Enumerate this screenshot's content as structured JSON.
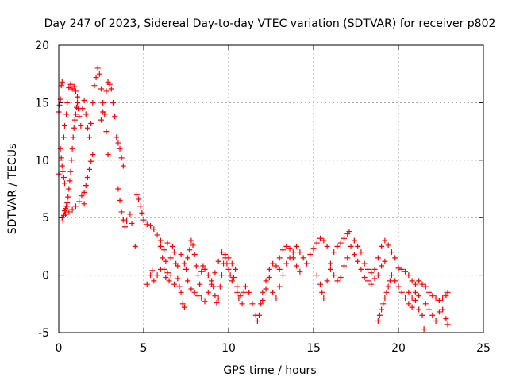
{
  "chart_data": {
    "type": "scatter",
    "title": "Day 247 of 2023, Sidereal Day-to-day VTEC variation (SDTVAR) for receiver p802",
    "xlabel": "GPS time / hours",
    "ylabel": "SDTVAR / TECUs",
    "xlim": [
      0,
      25
    ],
    "ylim": [
      -5,
      20
    ],
    "xticks": [
      0,
      5,
      10,
      15,
      20,
      25
    ],
    "yticks": [
      -5,
      0,
      5,
      10,
      15,
      20
    ],
    "xtick_labels": [
      "0",
      "5",
      "10",
      "15",
      "20",
      "25"
    ],
    "ytick_labels": [
      "-5",
      "0",
      "5",
      "10",
      "15",
      "20"
    ],
    "grid": true,
    "marker": "+",
    "marker_color": "#ff0000",
    "series": [
      {
        "name": "SDTVAR",
        "points": [
          [
            0.0,
            8.8
          ],
          [
            0.0,
            14.2
          ],
          [
            0.05,
            14.8
          ],
          [
            0.1,
            15.3
          ],
          [
            0.15,
            16.5
          ],
          [
            0.2,
            16.8
          ],
          [
            0.2,
            5.0
          ],
          [
            0.25,
            4.7
          ],
          [
            0.3,
            5.2
          ],
          [
            0.35,
            5.6
          ],
          [
            0.4,
            5.8
          ],
          [
            0.45,
            6.0
          ],
          [
            0.5,
            6.3
          ],
          [
            0.55,
            6.8
          ],
          [
            0.6,
            7.5
          ],
          [
            0.65,
            8.2
          ],
          [
            0.7,
            9.0
          ],
          [
            0.75,
            10.0
          ],
          [
            0.8,
            11.0
          ],
          [
            0.85,
            12.0
          ],
          [
            0.9,
            12.8
          ],
          [
            0.95,
            13.5
          ],
          [
            1.0,
            14.0
          ],
          [
            1.05,
            14.6
          ],
          [
            1.1,
            15.0
          ],
          [
            1.15,
            14.5
          ],
          [
            1.2,
            13.8
          ],
          [
            1.3,
            13.0
          ],
          [
            1.4,
            14.5
          ],
          [
            1.5,
            15.2
          ],
          [
            1.6,
            14.0
          ],
          [
            1.7,
            12.8
          ],
          [
            1.8,
            12.0
          ],
          [
            1.9,
            13.2
          ],
          [
            2.0,
            15.0
          ],
          [
            2.1,
            16.5
          ],
          [
            2.2,
            17.2
          ],
          [
            2.3,
            18.0
          ],
          [
            2.4,
            17.5
          ],
          [
            2.5,
            16.2
          ],
          [
            2.6,
            15.0
          ],
          [
            2.7,
            14.0
          ],
          [
            2.8,
            12.5
          ],
          [
            2.9,
            10.5
          ],
          [
            2.5,
            13.5
          ],
          [
            2.6,
            14.2
          ],
          [
            2.8,
            16.0
          ],
          [
            2.9,
            16.8
          ],
          [
            3.0,
            16.6
          ],
          [
            3.1,
            16.2
          ],
          [
            3.2,
            15.0
          ],
          [
            3.3,
            13.8
          ],
          [
            3.4,
            12.0
          ],
          [
            3.5,
            11.5
          ],
          [
            3.6,
            11.0
          ],
          [
            3.7,
            10.2
          ],
          [
            3.8,
            9.5
          ],
          [
            3.5,
            7.5
          ],
          [
            3.6,
            6.5
          ],
          [
            3.7,
            5.5
          ],
          [
            3.8,
            4.8
          ],
          [
            3.9,
            4.2
          ],
          [
            4.0,
            4.7
          ],
          [
            4.2,
            5.3
          ],
          [
            4.3,
            4.5
          ],
          [
            4.5,
            2.5
          ],
          [
            4.6,
            7.0
          ],
          [
            4.7,
            6.6
          ],
          [
            4.8,
            6.0
          ],
          [
            4.9,
            5.4
          ],
          [
            5.0,
            4.8
          ],
          [
            5.2,
            4.4
          ],
          [
            0.4,
            5.3
          ],
          [
            0.6,
            5.5
          ],
          [
            0.8,
            5.7
          ],
          [
            1.0,
            6.0
          ],
          [
            1.2,
            6.4
          ],
          [
            1.35,
            6.9
          ],
          [
            1.5,
            7.2
          ],
          [
            1.6,
            7.8
          ],
          [
            1.7,
            8.5
          ],
          [
            1.8,
            9.2
          ],
          [
            1.9,
            9.9
          ],
          [
            2.0,
            10.5
          ],
          [
            1.5,
            6.2
          ],
          [
            0.5,
            6.0
          ],
          [
            0.6,
            16.3
          ],
          [
            0.7,
            16.6
          ],
          [
            0.8,
            16.2
          ],
          [
            0.9,
            16.4
          ],
          [
            1.0,
            16.0
          ],
          [
            1.1,
            15.5
          ],
          [
            0.3,
            12.0
          ],
          [
            0.35,
            13.0
          ],
          [
            0.45,
            14.0
          ],
          [
            0.5,
            15.0
          ],
          [
            0.1,
            11.0
          ],
          [
            0.15,
            10.2
          ],
          [
            0.2,
            9.5
          ],
          [
            0.25,
            9.0
          ],
          [
            0.3,
            8.5
          ],
          [
            0.35,
            8.0
          ],
          [
            5.4,
            4.3
          ],
          [
            5.6,
            4.0
          ],
          [
            5.8,
            3.5
          ],
          [
            6.0,
            3.0
          ],
          [
            6.2,
            2.2
          ],
          [
            6.3,
            1.2
          ],
          [
            6.4,
            0.2
          ],
          [
            6.5,
            -0.5
          ],
          [
            6.6,
            1.5
          ],
          [
            6.7,
            2.5
          ],
          [
            6.8,
            2.0
          ],
          [
            6.9,
            1.0
          ],
          [
            7.0,
            -0.3
          ],
          [
            7.1,
            -1.0
          ],
          [
            7.2,
            -1.5
          ],
          [
            7.3,
            -2.5
          ],
          [
            7.4,
            -2.8
          ],
          [
            7.5,
            0.5
          ],
          [
            7.6,
            1.5
          ],
          [
            7.7,
            2.2
          ],
          [
            7.8,
            3.0
          ],
          [
            7.9,
            2.6
          ],
          [
            8.0,
            1.8
          ],
          [
            8.1,
            0.8
          ],
          [
            8.2,
            0.0
          ],
          [
            8.3,
            -0.8
          ],
          [
            8.4,
            0.3
          ],
          [
            8.5,
            0.8
          ],
          [
            8.6,
            0.5
          ],
          [
            8.8,
            0.0
          ],
          [
            9.0,
            -0.5
          ],
          [
            9.1,
            -1.0
          ],
          [
            9.2,
            -1.8
          ],
          [
            9.3,
            -2.4
          ],
          [
            9.4,
            -2.0
          ],
          [
            9.5,
            -1.0
          ],
          [
            9.6,
            0.0
          ],
          [
            9.7,
            1.0
          ],
          [
            9.8,
            1.5
          ],
          [
            9.9,
            1.0
          ],
          [
            10.0,
            0.5
          ],
          [
            10.1,
            0.0
          ],
          [
            10.2,
            -0.5
          ],
          [
            10.3,
            -0.2
          ],
          [
            10.4,
            0.5
          ],
          [
            10.5,
            -1.0
          ],
          [
            10.6,
            -2.0
          ],
          [
            10.8,
            -2.5
          ],
          [
            6.0,
            2.5
          ],
          [
            6.1,
            1.5
          ],
          [
            6.2,
            0.5
          ],
          [
            6.3,
            -0.2
          ],
          [
            6.4,
            2.8
          ],
          [
            6.6,
            0.0
          ],
          [
            6.8,
            -0.8
          ],
          [
            7.0,
            0.8
          ],
          [
            7.2,
            1.8
          ],
          [
            7.4,
            1.0
          ],
          [
            7.6,
            -0.5
          ],
          [
            7.8,
            -1.2
          ],
          [
            8.0,
            -1.5
          ],
          [
            8.2,
            -1.8
          ],
          [
            8.4,
            -2.0
          ],
          [
            8.6,
            -2.3
          ],
          [
            8.8,
            -1.5
          ],
          [
            9.0,
            -0.8
          ],
          [
            9.2,
            0.2
          ],
          [
            9.4,
            1.2
          ],
          [
            9.6,
            2.0
          ],
          [
            9.8,
            1.8
          ],
          [
            10.0,
            1.5
          ],
          [
            10.2,
            1.0
          ],
          [
            5.2,
            -0.8
          ],
          [
            5.4,
            0.0
          ],
          [
            5.5,
            0.4
          ],
          [
            5.6,
            -0.5
          ],
          [
            5.8,
            0.0
          ],
          [
            6.0,
            0.5
          ],
          [
            10.5,
            -1.5
          ],
          [
            10.7,
            -1.8
          ],
          [
            10.9,
            -1.5
          ],
          [
            11.0,
            -1.0
          ],
          [
            11.2,
            -1.5
          ],
          [
            11.4,
            -2.5
          ],
          [
            11.6,
            -3.5
          ],
          [
            11.7,
            -4.0
          ],
          [
            11.8,
            -3.5
          ],
          [
            11.9,
            -2.5
          ],
          [
            12.0,
            -1.5
          ],
          [
            12.2,
            -0.5
          ],
          [
            12.4,
            0.5
          ],
          [
            12.6,
            1.0
          ],
          [
            12.8,
            0.8
          ],
          [
            13.0,
            0.5
          ],
          [
            12.0,
            -2.2
          ],
          [
            12.2,
            -1.2
          ],
          [
            12.4,
            -0.2
          ],
          [
            12.6,
            -1.5
          ],
          [
            12.8,
            -2.0
          ],
          [
            13.0,
            -1.0
          ],
          [
            13.2,
            0.0
          ],
          [
            13.4,
            1.0
          ],
          [
            13.6,
            1.5
          ],
          [
            13.8,
            2.0
          ],
          [
            14.0,
            2.5
          ],
          [
            14.2,
            2.0
          ],
          [
            14.4,
            1.5
          ],
          [
            14.6,
            1.0
          ],
          [
            14.8,
            1.8
          ],
          [
            15.0,
            2.3
          ],
          [
            15.2,
            2.8
          ],
          [
            15.4,
            3.2
          ],
          [
            15.6,
            3.0
          ],
          [
            15.8,
            2.5
          ],
          [
            15.2,
            0.0
          ],
          [
            15.4,
            -0.8
          ],
          [
            15.5,
            -1.5
          ],
          [
            15.6,
            -2.0
          ],
          [
            15.8,
            -0.5
          ],
          [
            16.0,
            1.0
          ],
          [
            16.2,
            2.0
          ],
          [
            16.4,
            2.5
          ],
          [
            16.6,
            2.8
          ],
          [
            16.8,
            3.2
          ],
          [
            17.0,
            3.6
          ],
          [
            17.1,
            3.8
          ],
          [
            13.0,
            1.5
          ],
          [
            13.2,
            2.2
          ],
          [
            13.4,
            2.5
          ],
          [
            13.6,
            2.3
          ],
          [
            13.8,
            1.5
          ],
          [
            14.0,
            0.8
          ],
          [
            14.2,
            0.3
          ],
          [
            16.0,
            0.5
          ],
          [
            16.2,
            0.0
          ],
          [
            16.4,
            -0.5
          ],
          [
            16.6,
            -0.2
          ],
          [
            16.8,
            0.8
          ],
          [
            17.0,
            1.5
          ],
          [
            17.2,
            2.5
          ],
          [
            17.4,
            3.0
          ],
          [
            17.6,
            2.5
          ],
          [
            17.8,
            2.0
          ],
          [
            18.0,
            1.0
          ],
          [
            18.2,
            0.5
          ],
          [
            18.4,
            0.2
          ],
          [
            18.6,
            0.5
          ],
          [
            18.8,
            1.5
          ],
          [
            19.0,
            2.5
          ],
          [
            19.2,
            3.0
          ],
          [
            19.4,
            2.6
          ],
          [
            19.6,
            2.0
          ],
          [
            19.8,
            1.5
          ],
          [
            20.0,
            0.6
          ],
          [
            17.4,
            1.8
          ],
          [
            17.6,
            1.2
          ],
          [
            17.8,
            0.5
          ],
          [
            18.0,
            -0.2
          ],
          [
            18.2,
            -0.5
          ],
          [
            18.4,
            -0.8
          ],
          [
            18.6,
            -0.3
          ],
          [
            18.8,
            0.0
          ],
          [
            19.0,
            0.8
          ],
          [
            19.2,
            1.2
          ],
          [
            18.8,
            -4.0
          ],
          [
            18.9,
            -3.5
          ],
          [
            19.0,
            -3.0
          ],
          [
            19.1,
            -2.5
          ],
          [
            19.2,
            -2.0
          ],
          [
            19.3,
            -1.5
          ],
          [
            19.4,
            -1.0
          ],
          [
            19.5,
            -0.5
          ],
          [
            19.6,
            0.0
          ],
          [
            19.8,
            -0.5
          ],
          [
            20.0,
            -1.0
          ],
          [
            20.2,
            -1.5
          ],
          [
            20.4,
            -2.0
          ],
          [
            20.6,
            -2.5
          ],
          [
            20.8,
            -2.0
          ],
          [
            21.0,
            -1.5
          ],
          [
            20.2,
            0.5
          ],
          [
            20.4,
            0.3
          ],
          [
            20.6,
            0.0
          ],
          [
            20.8,
            -0.5
          ],
          [
            21.0,
            -0.8
          ],
          [
            21.2,
            -0.5
          ],
          [
            21.4,
            -0.8
          ],
          [
            21.6,
            -1.0
          ],
          [
            21.8,
            -1.5
          ],
          [
            22.0,
            -1.8
          ],
          [
            22.2,
            -2.0
          ],
          [
            22.4,
            -2.2
          ],
          [
            22.6,
            -2.0
          ],
          [
            22.8,
            -1.8
          ],
          [
            22.9,
            -1.5
          ],
          [
            21.5,
            -4.7
          ],
          [
            21.2,
            -3.0
          ],
          [
            21.4,
            -3.5
          ],
          [
            21.6,
            -2.5
          ],
          [
            21.8,
            -3.0
          ],
          [
            22.0,
            -3.5
          ],
          [
            22.2,
            -4.0
          ],
          [
            22.4,
            -3.2
          ],
          [
            22.6,
            -3.0
          ],
          [
            22.8,
            -3.8
          ],
          [
            22.9,
            -4.3
          ],
          [
            20.6,
            -1.5
          ],
          [
            20.8,
            -2.8
          ],
          [
            21.0,
            -2.2
          ],
          [
            21.2,
            -1.8
          ]
        ]
      }
    ]
  }
}
